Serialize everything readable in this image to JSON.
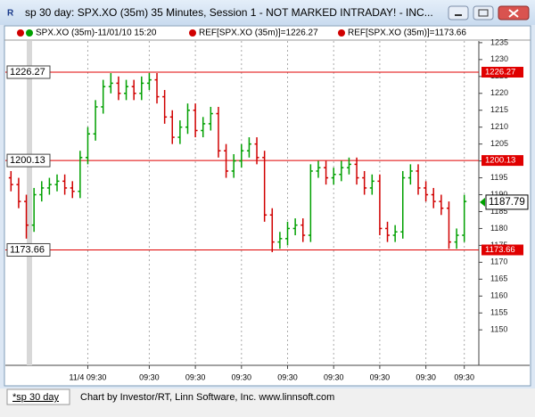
{
  "window": {
    "title": "sp 30 day: SPX.XO (35m) 35 Minutes, Session 1 - NOT MARKED INTRADAY! - INC..."
  },
  "legend": [
    "SPX.XO (35m)-11/01/10 15:20",
    "REF[SPX.XO (35m)]=1226.27",
    "REF[SPX.XO (35m)]=1173.66"
  ],
  "footer": {
    "tab": "*sp 30 day",
    "credit": "Chart by Investor/RT, Linn Software, Inc. www.linnsoft.com"
  },
  "chart_data": {
    "type": "ohlc",
    "categories": [
      null,
      null,
      null,
      null,
      null,
      null,
      null,
      null,
      null,
      null,
      "11/4 09:30",
      null,
      null,
      null,
      null,
      null,
      null,
      null,
      "09:30",
      null,
      null,
      null,
      null,
      null,
      "09:30",
      null,
      null,
      null,
      null,
      null,
      "09:30",
      null,
      null,
      null,
      null,
      null,
      "09:30",
      null,
      null,
      null,
      null,
      null,
      "09:30",
      null,
      null,
      null,
      null,
      null,
      "09:30",
      null,
      null,
      null,
      null,
      null,
      "09:30",
      null,
      null,
      null,
      null,
      "09:30"
    ],
    "open": [
      1195,
      1193,
      1188,
      1181,
      1190,
      1192,
      1193,
      1194,
      1192,
      1191,
      1201,
      1208,
      1216,
      1222,
      1223,
      1220,
      1222,
      1220,
      1223,
      1224,
      1219,
      1213,
      1207,
      1210,
      1215,
      1209,
      1211,
      1214,
      1203,
      1197,
      1200,
      1203,
      1205,
      1201,
      1184,
      1176,
      1177,
      1180,
      1181,
      1178,
      1197,
      1198,
      1195,
      1196,
      1198,
      1199,
      1195,
      1192,
      1194,
      1180,
      1178,
      1179,
      1195,
      1197,
      1192,
      1190,
      1188,
      1186,
      1176,
      1178
    ],
    "high": [
      1197,
      1195,
      1190,
      1192,
      1194,
      1195,
      1196,
      1196,
      1194,
      1203,
      1210,
      1218,
      1224,
      1226,
      1225,
      1224,
      1224,
      1225,
      1226,
      1226,
      1221,
      1215,
      1212,
      1217,
      1217,
      1213,
      1216,
      1216,
      1205,
      1202,
      1205,
      1207,
      1207,
      1203,
      1186,
      1179,
      1182,
      1183,
      1183,
      1199,
      1200,
      1200,
      1198,
      1200,
      1201,
      1201,
      1197,
      1196,
      1196,
      1182,
      1181,
      1197,
      1199,
      1199,
      1194,
      1192,
      1190,
      1188,
      1180,
      1190
    ],
    "low": [
      1191,
      1186,
      1177,
      1179,
      1188,
      1190,
      1191,
      1190,
      1189,
      1189,
      1199,
      1206,
      1214,
      1220,
      1218,
      1218,
      1218,
      1218,
      1221,
      1217,
      1211,
      1205,
      1205,
      1208,
      1207,
      1207,
      1209,
      1201,
      1195,
      1195,
      1198,
      1201,
      1199,
      1182,
      1173,
      1174,
      1175,
      1178,
      1176,
      1176,
      1195,
      1193,
      1193,
      1194,
      1196,
      1193,
      1190,
      1190,
      1178,
      1176,
      1176,
      1177,
      1193,
      1190,
      1188,
      1186,
      1184,
      1174,
      1174,
      1176
    ],
    "close": [
      1193,
      1188,
      1181,
      1190,
      1192,
      1193,
      1194,
      1192,
      1191,
      1201,
      1208,
      1216,
      1222,
      1223,
      1220,
      1222,
      1220,
      1223,
      1224,
      1219,
      1213,
      1207,
      1210,
      1215,
      1209,
      1211,
      1214,
      1203,
      1197,
      1200,
      1203,
      1205,
      1201,
      1184,
      1176,
      1177,
      1180,
      1181,
      1178,
      1197,
      1198,
      1195,
      1196,
      1198,
      1199,
      1195,
      1192,
      1194,
      1180,
      1178,
      1179,
      1195,
      1197,
      1192,
      1190,
      1188,
      1186,
      1176,
      1178,
      1188
    ],
    "up_color": "#00a000",
    "down_color": "#d00000",
    "ylim": [
      1139.5,
      1235.5
    ],
    "yticks": [
      1150,
      1155,
      1160,
      1165,
      1170,
      1175,
      1180,
      1185,
      1190,
      1195,
      1200,
      1205,
      1210,
      1215,
      1220,
      1225,
      1230,
      1235
    ],
    "ref_lines": [
      {
        "value": 1226.27,
        "color": "#e00000"
      },
      {
        "value": 1200.13,
        "color": "#e00000"
      },
      {
        "value": 1173.66,
        "color": "#e00000"
      }
    ],
    "last": 1187.79
  }
}
